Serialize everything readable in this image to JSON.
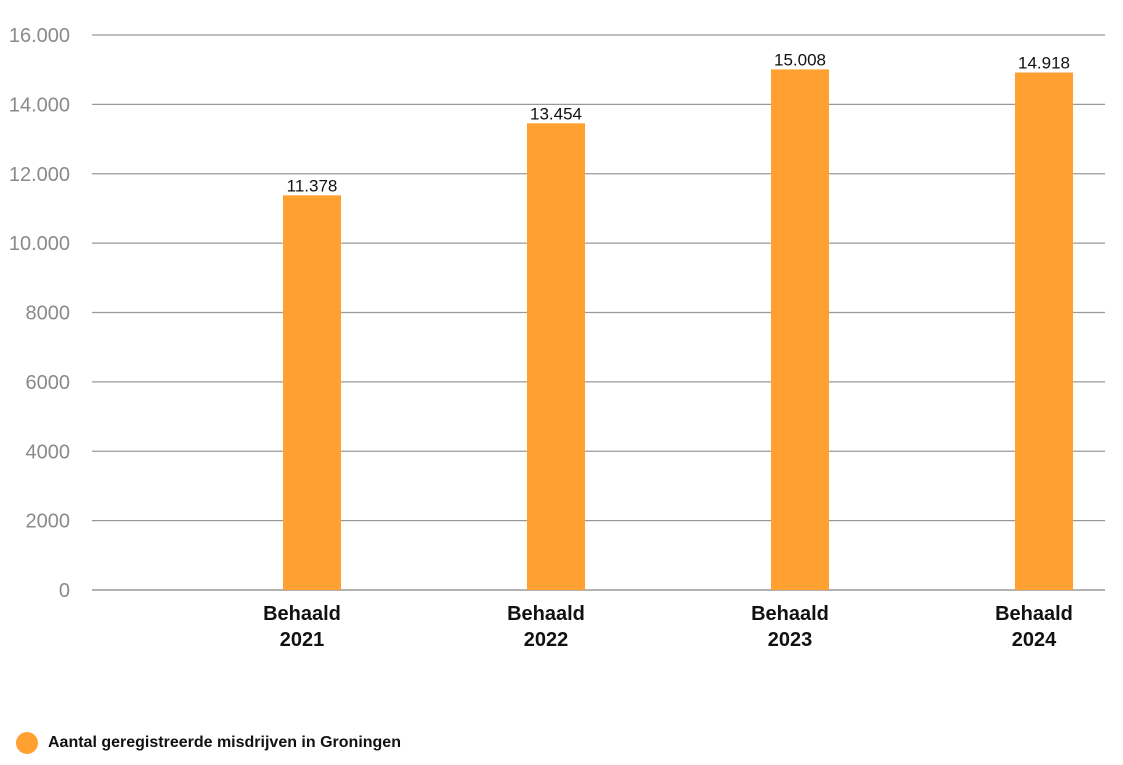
{
  "chart_data": {
    "type": "bar",
    "categories": [
      [
        "Behaald",
        "2021"
      ],
      [
        "Behaald",
        "2022"
      ],
      [
        "Behaald",
        "2023"
      ],
      [
        "Behaald",
        "2024"
      ]
    ],
    "series": [
      {
        "name": "Aantal geregistreerde misdrijven in Groningen",
        "values": [
          11378,
          13454,
          15008,
          14918
        ],
        "labels": [
          "11.378",
          "13.454",
          "15.008",
          "14.918"
        ],
        "color": "#ffa031"
      }
    ],
    "y_ticks": [
      {
        "value": 0,
        "label": "0"
      },
      {
        "value": 2000,
        "label": "2000"
      },
      {
        "value": 4000,
        "label": "4000"
      },
      {
        "value": 6000,
        "label": "6000"
      },
      {
        "value": 8000,
        "label": "8000"
      },
      {
        "value": 10000,
        "label": "10.000"
      },
      {
        "value": 12000,
        "label": "12.000"
      },
      {
        "value": 14000,
        "label": "14.000"
      },
      {
        "value": 16000,
        "label": "16.000"
      }
    ],
    "ylim": [
      0,
      16000
    ],
    "grid": true,
    "gridColor": "#999999",
    "legend_position": "bottom-left"
  }
}
